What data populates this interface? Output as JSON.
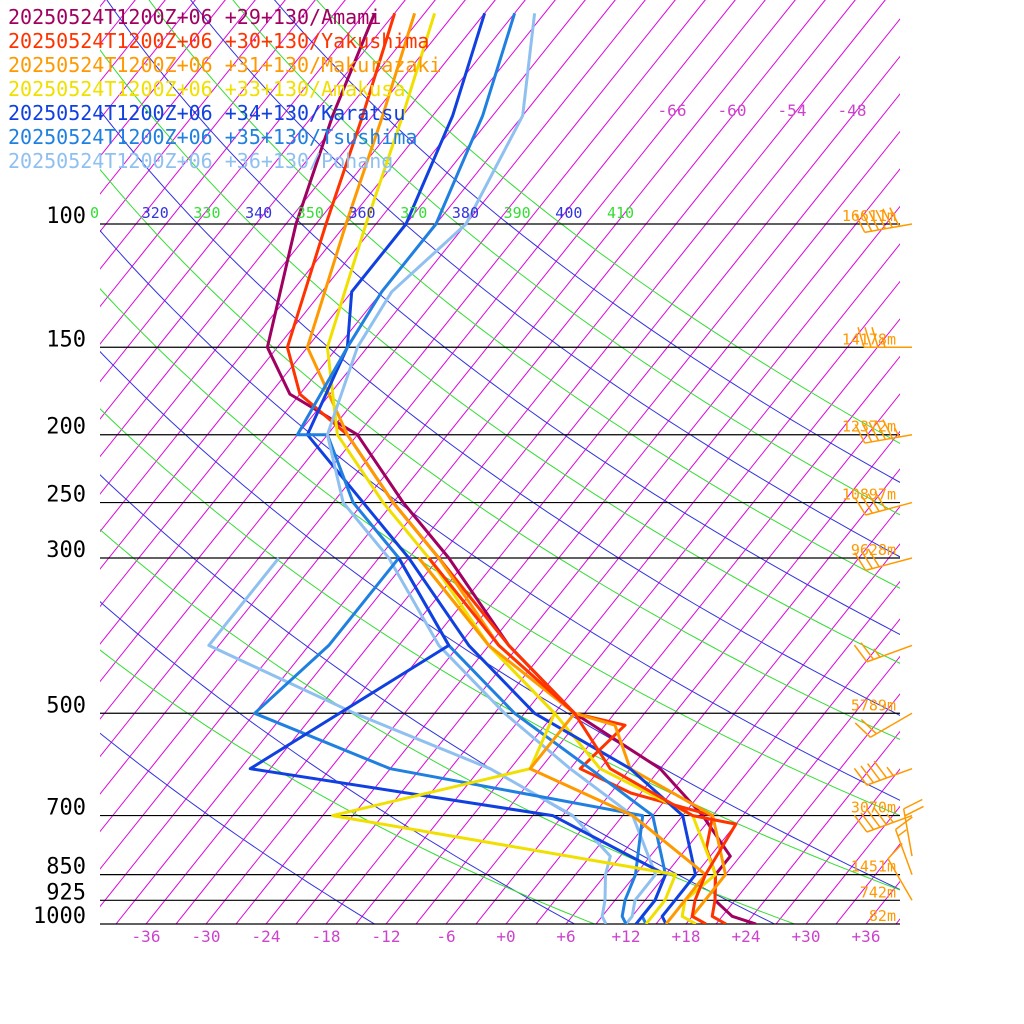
{
  "colors": {
    "isotherm": "#dd00dd",
    "isotherm_label": "#cc44cc",
    "dry_adiabat": "#3333dd",
    "moist_adiabat": "#33dd33",
    "isobar": "#000000",
    "height_label": "#ff9900",
    "wind_barb": "#ff9900"
  },
  "legend": [
    {
      "text": "20250524T1200Z+06 +29+130/Amami",
      "color": "#a00060"
    },
    {
      "text": "20250524T1200Z+06 +30+130/Yakushima",
      "color": "#ff3300"
    },
    {
      "text": "20250524T1200Z+06 +31+130/Makurazaki",
      "color": "#ff9900"
    },
    {
      "text": "20250524T1200Z+06 +33+130/Amakusa",
      "color": "#f0e000"
    },
    {
      "text": "20250524T1200Z+06 +34+130/Karatsu",
      "color": "#1040e0"
    },
    {
      "text": "20250524T1200Z+06 +35+130/Tsushima",
      "color": "#2080e0"
    },
    {
      "text": "20250524T1200Z+06 +36+130/Pohang",
      "color": "#90c0f0"
    }
  ],
  "chart_data": {
    "type": "line",
    "chart_kind": "skew-T log-p sounding",
    "y_axis": {
      "scale": "log pressure (hPa)",
      "ylim": [
        1000,
        100
      ]
    },
    "x_axis": {
      "quantity": "temperature (°C), skewed",
      "xlim": [
        -40,
        40
      ]
    },
    "pressure_ticks": [
      "100",
      "150",
      "200",
      "250",
      "300",
      "500",
      "700",
      "850",
      "925",
      "1000"
    ],
    "temperature_ticks": [
      "-36",
      "-30",
      "-24",
      "-18",
      "-12",
      "-6",
      "+0",
      "+6",
      "+12",
      "+18",
      "+24",
      "+30",
      "+36"
    ],
    "upper_isotherm_labels": [
      "-66",
      "-60",
      "-54",
      "-48"
    ],
    "theta_labels": [
      {
        "text": "0",
        "family": "moist"
      },
      {
        "text": "320",
        "family": "dry"
      },
      {
        "text": "330",
        "family": "moist"
      },
      {
        "text": "340",
        "family": "dry"
      },
      {
        "text": "350",
        "family": "moist"
      },
      {
        "text": "360",
        "family": "dry"
      },
      {
        "text": "370",
        "family": "moist"
      },
      {
        "text": "380",
        "family": "dry"
      },
      {
        "text": "390",
        "family": "moist"
      },
      {
        "text": "400",
        "family": "dry"
      },
      {
        "text": "410",
        "family": "moist"
      }
    ],
    "heights": [
      {
        "p": 100,
        "text": "16611m"
      },
      {
        "p": 150,
        "text": "14178m"
      },
      {
        "p": 200,
        "text": "12372m"
      },
      {
        "p": 250,
        "text": "10897m"
      },
      {
        "p": 300,
        "text": "9628m"
      },
      {
        "p": 500,
        "text": "5789m"
      },
      {
        "p": 700,
        "text": "3070m"
      },
      {
        "p": 850,
        "text": "1451m"
      },
      {
        "p": 925,
        "text": "742m"
      },
      {
        "p": 1000,
        "text": "82m"
      }
    ],
    "series": [
      {
        "name": "20250524T1200Z+06 +29+130/Amami",
        "color": "#a00060",
        "temperature": [
          [
            1000,
            25
          ],
          [
            975,
            22
          ],
          [
            925,
            19
          ],
          [
            850,
            17
          ],
          [
            800,
            17
          ],
          [
            700,
            11
          ],
          [
            600,
            3
          ],
          [
            500,
            -10
          ],
          [
            400,
            -22
          ],
          [
            300,
            -35
          ],
          [
            250,
            -44
          ],
          [
            200,
            -54
          ],
          [
            175,
            -64
          ],
          [
            150,
            -70
          ],
          [
            100,
            -77
          ],
          [
            70,
            -82
          ],
          [
            50,
            -86
          ]
        ]
      },
      {
        "name": "20250524T1200Z+06 +30+130/Yakushima",
        "color": "#ff3300",
        "temperature": [
          [
            1000,
            22
          ],
          [
            975,
            20
          ],
          [
            925,
            19
          ],
          [
            850,
            17
          ],
          [
            780,
            14
          ],
          [
            700,
            12
          ],
          [
            650,
            2
          ],
          [
            600,
            -5
          ],
          [
            520,
            -4
          ],
          [
            500,
            -10
          ],
          [
            400,
            -22
          ],
          [
            300,
            -36
          ],
          [
            250,
            -45
          ],
          [
            200,
            -55
          ],
          [
            175,
            -63
          ],
          [
            150,
            -68
          ],
          [
            100,
            -74
          ],
          [
            70,
            -79
          ],
          [
            50,
            -84
          ]
        ]
      },
      {
        "name": "20250524T1200Z+06 +31+130/Makurazaki",
        "color": "#ff9900",
        "temperature": [
          [
            1000,
            20
          ],
          [
            975,
            18
          ],
          [
            925,
            18
          ],
          [
            850,
            18
          ],
          [
            700,
            12
          ],
          [
            600,
            0
          ],
          [
            520,
            -5
          ],
          [
            500,
            -10
          ],
          [
            400,
            -23
          ],
          [
            300,
            -36
          ],
          [
            250,
            -45
          ],
          [
            200,
            -55
          ],
          [
            150,
            -66
          ],
          [
            100,
            -72
          ],
          [
            70,
            -77
          ],
          [
            50,
            -82
          ]
        ]
      },
      {
        "name": "20250524T1200Z+06 +33+130/Amakusa",
        "color": "#f0e000",
        "temperature": [
          [
            1000,
            19
          ],
          [
            975,
            17
          ],
          [
            925,
            16
          ],
          [
            850,
            17
          ],
          [
            700,
            10
          ],
          [
            600,
            -3
          ],
          [
            500,
            -12
          ],
          [
            400,
            -24
          ],
          [
            300,
            -37
          ],
          [
            250,
            -46
          ],
          [
            200,
            -56
          ],
          [
            150,
            -64
          ],
          [
            100,
            -70
          ],
          [
            70,
            -75
          ],
          [
            50,
            -80
          ]
        ]
      },
      {
        "name": "20250524T1200Z+06 +34+130/Karatsu",
        "color": "#1040e0",
        "temperature": [
          [
            1000,
            16
          ],
          [
            975,
            15
          ],
          [
            925,
            15
          ],
          [
            850,
            15
          ],
          [
            700,
            9
          ],
          [
            600,
            0
          ],
          [
            500,
            -14
          ],
          [
            400,
            -26
          ],
          [
            300,
            -39
          ],
          [
            250,
            -48
          ],
          [
            200,
            -59
          ],
          [
            150,
            -62
          ],
          [
            125,
            -66
          ],
          [
            100,
            -66
          ],
          [
            70,
            -70
          ],
          [
            50,
            -75
          ]
        ]
      },
      {
        "name": "20250524T1200Z+06 +35+130/Tsushima",
        "color": "#2080e0",
        "temperature": [
          [
            1000,
            14
          ],
          [
            975,
            13
          ],
          [
            925,
            13
          ],
          [
            850,
            12
          ],
          [
            700,
            6
          ],
          [
            600,
            -4
          ],
          [
            500,
            -16
          ],
          [
            400,
            -28
          ],
          [
            300,
            -40
          ],
          [
            250,
            -49
          ],
          [
            200,
            -57
          ],
          [
            200,
            -60
          ],
          [
            150,
            -62
          ],
          [
            125,
            -63
          ],
          [
            100,
            -63
          ],
          [
            70,
            -67
          ],
          [
            50,
            -72
          ]
        ]
      },
      {
        "name": "20250524T1200Z+06 +36+130/Pohang",
        "color": "#90c0f0",
        "temperature": [
          [
            1000,
            12
          ],
          [
            975,
            12
          ],
          [
            925,
            11
          ],
          [
            850,
            11
          ],
          [
            700,
            4
          ],
          [
            600,
            -6
          ],
          [
            500,
            -17
          ],
          [
            400,
            -29
          ],
          [
            300,
            -41
          ],
          [
            250,
            -50
          ],
          [
            200,
            -57
          ],
          [
            150,
            -61
          ],
          [
            125,
            -62
          ],
          [
            100,
            -60
          ],
          [
            70,
            -63
          ],
          [
            50,
            -70
          ]
        ]
      },
      {
        "name": "20250524T1200Z+06 +36+130/Pohang",
        "color": "#90c0f0",
        "dewpoint": [
          [
            1000,
            10
          ],
          [
            975,
            9
          ],
          [
            925,
            8
          ],
          [
            850,
            6
          ],
          [
            800,
            5
          ],
          [
            700,
            -2
          ],
          [
            600,
            -14
          ],
          [
            500,
            -32
          ],
          [
            400,
            -52
          ],
          [
            300,
            -52
          ]
        ]
      },
      {
        "name": "20250524T1200Z+06 +35+130/Tsushima",
        "color": "#2080e0",
        "dewpoint": [
          [
            1000,
            12
          ],
          [
            975,
            11
          ],
          [
            925,
            10
          ],
          [
            850,
            9
          ],
          [
            700,
            5
          ],
          [
            600,
            -24
          ],
          [
            500,
            -42
          ],
          [
            400,
            -40
          ],
          [
            300,
            -40
          ]
        ]
      },
      {
        "name": "20250524T1200Z+06 +34+130/Karatsu",
        "color": "#1040e0",
        "dewpoint": [
          [
            1000,
            13
          ],
          [
            975,
            13
          ],
          [
            925,
            13
          ],
          [
            850,
            12
          ],
          [
            700,
            -4
          ],
          [
            600,
            -38
          ],
          [
            400,
            -28
          ],
          [
            300,
            -40
          ]
        ]
      },
      {
        "name": "20250524T1200Z+06 +33+130/Amakusa",
        "color": "#f0e000",
        "dewpoint": [
          [
            1000,
            14
          ],
          [
            975,
            14
          ],
          [
            925,
            14
          ],
          [
            850,
            13
          ],
          [
            700,
            -26
          ],
          [
            600,
            -10
          ],
          [
            500,
            -12
          ],
          [
            400,
            -24
          ],
          [
            300,
            -38
          ]
        ]
      },
      {
        "name": "20250524T1200Z+06 +31+130/Makurazaki",
        "color": "#ff9900",
        "dewpoint": [
          [
            1000,
            16
          ],
          [
            975,
            16
          ],
          [
            925,
            16
          ],
          [
            850,
            16
          ],
          [
            700,
            4
          ],
          [
            600,
            -10
          ],
          [
            500,
            -10
          ],
          [
            400,
            -24
          ],
          [
            300,
            -38
          ]
        ]
      },
      {
        "name": "20250524T1200Z+06 +30+130/Yakushima",
        "color": "#ff3300",
        "dewpoint": [
          [
            1000,
            20
          ],
          [
            975,
            18
          ],
          [
            925,
            17
          ],
          [
            850,
            16
          ],
          [
            720,
            15
          ],
          [
            700,
            10
          ],
          [
            600,
            -2
          ],
          [
            500,
            -10
          ],
          [
            400,
            -23
          ],
          [
            300,
            -37
          ]
        ]
      }
    ],
    "wind": [
      {
        "p": 100,
        "speed_kt": 60,
        "dir_deg": 260
      },
      {
        "p": 150,
        "speed_kt": 35,
        "dir_deg": 270
      },
      {
        "p": 200,
        "speed_kt": 55,
        "dir_deg": 260
      },
      {
        "p": 250,
        "speed_kt": 40,
        "dir_deg": 255
      },
      {
        "p": 300,
        "speed_kt": 30,
        "dir_deg": 255
      },
      {
        "p": 400,
        "speed_kt": 25,
        "dir_deg": 250
      },
      {
        "p": 500,
        "speed_kt": 20,
        "dir_deg": 240
      },
      {
        "p": 600,
        "speed_kt": 45,
        "dir_deg": 250
      },
      {
        "p": 700,
        "speed_kt": 45,
        "dir_deg": 250
      },
      {
        "p": 800,
        "speed_kt": 20,
        "dir_deg": 350
      },
      {
        "p": 850,
        "speed_kt": 15,
        "dir_deg": 340
      },
      {
        "p": 925,
        "speed_kt": 10,
        "dir_deg": 330
      }
    ]
  }
}
